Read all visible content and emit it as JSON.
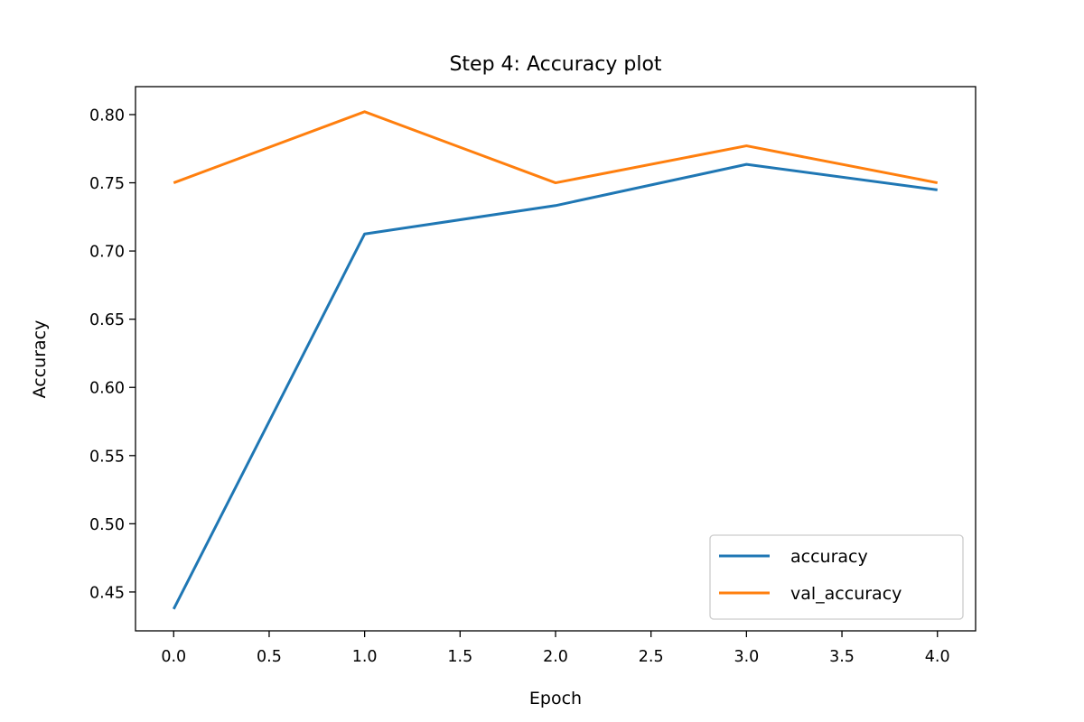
{
  "chart_data": {
    "type": "line",
    "title": "Step 4: Accuracy plot",
    "xlabel": "Epoch",
    "ylabel": "Accuracy",
    "x": [
      0,
      1,
      2,
      3,
      4
    ],
    "xlim": [
      -0.2,
      4.2
    ],
    "ylim": [
      0.4215,
      0.8205
    ],
    "xticks": [
      "0.0",
      "0.5",
      "1.0",
      "1.5",
      "2.0",
      "2.5",
      "3.0",
      "3.5",
      "4.0"
    ],
    "yticks": [
      "0.45",
      "0.50",
      "0.55",
      "0.60",
      "0.65",
      "0.70",
      "0.75",
      "0.80"
    ],
    "grid": false,
    "legend_position": "lower-right",
    "series": [
      {
        "name": "accuracy",
        "color": "#1f77b4",
        "values": [
          0.4375,
          0.7125,
          0.7333,
          0.7635,
          0.7448
        ]
      },
      {
        "name": "val_accuracy",
        "color": "#ff7f0e",
        "values": [
          0.75,
          0.8021,
          0.75,
          0.7771,
          0.75
        ]
      }
    ]
  }
}
